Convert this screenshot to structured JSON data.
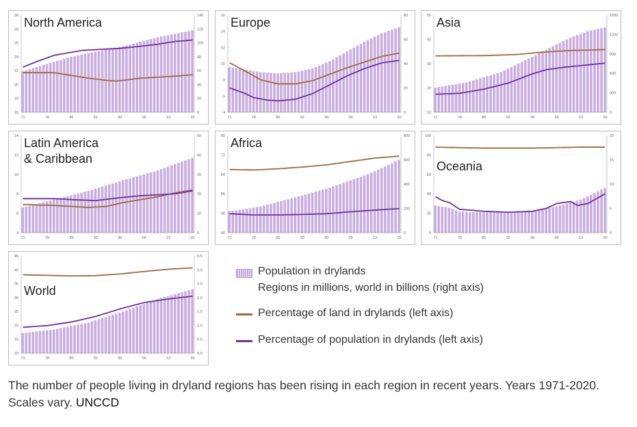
{
  "years": [
    1971,
    1972,
    1973,
    1974,
    1975,
    1976,
    1977,
    1978,
    1979,
    1980,
    1981,
    1982,
    1983,
    1984,
    1985,
    1986,
    1987,
    1988,
    1989,
    1990,
    1991,
    1992,
    1993,
    1994,
    1995,
    1996,
    1997,
    1998,
    1999,
    2000,
    2001,
    2002,
    2003,
    2004,
    2005,
    2006,
    2007,
    2008,
    2009,
    2010,
    2011,
    2012,
    2013,
    2014,
    2015,
    2016,
    2017,
    2018,
    2019,
    2020
  ],
  "x_tick_labels": [
    "71",
    "78",
    "85",
    "92",
    "99",
    "06",
    "13",
    "20"
  ],
  "colors": {
    "bar": "#c9addf",
    "bar_edge": "#ede2f6",
    "land": "#9c6a3a",
    "pop": "#6a2fa3",
    "border": "#b9b9b9",
    "tick": "#666666"
  },
  "chart_data": [
    {
      "type": "bar+line",
      "title": "North America",
      "left_ylim": [
        16,
        30
      ],
      "left_ticks": [
        "16",
        "18",
        "20",
        "22",
        "24",
        "26",
        "28",
        "30"
      ],
      "right_ylim": [
        0,
        140
      ],
      "right_ticks": [
        "0",
        "20",
        "40",
        "60",
        "80",
        "100",
        "120",
        "140"
      ],
      "population_keyframes": [
        [
          1971,
          59
        ],
        [
          1985,
          80
        ],
        [
          2000,
          95
        ],
        [
          2010,
          108
        ],
        [
          2020,
          118
        ]
      ],
      "land_pct_keyframes": [
        [
          1971,
          21.7
        ],
        [
          1980,
          21.7
        ],
        [
          1985,
          21.3
        ],
        [
          1990,
          20.9
        ],
        [
          1995,
          20.6
        ],
        [
          1998,
          20.5
        ],
        [
          2000,
          20.6
        ],
        [
          2005,
          20.9
        ],
        [
          2015,
          21.2
        ],
        [
          2020,
          21.4
        ]
      ],
      "pop_pct_keyframes": [
        [
          1971,
          22.5
        ],
        [
          1975,
          23.3
        ],
        [
          1980,
          24.2
        ],
        [
          1988,
          24.9
        ],
        [
          1995,
          25.1
        ],
        [
          1999,
          25.2
        ],
        [
          2005,
          25.5
        ],
        [
          2010,
          25.8
        ],
        [
          2015,
          26.2
        ],
        [
          2020,
          26.4
        ]
      ]
    },
    {
      "type": "bar+line",
      "title": "Europe",
      "left_ylim": [
        4,
        16
      ],
      "left_ticks": [
        "4",
        "6",
        "8",
        "10",
        "12",
        "14",
        "16"
      ],
      "right_ylim": [
        0,
        80
      ],
      "right_ticks": [
        "0",
        "20",
        "40",
        "60",
        "80"
      ],
      "population_keyframes": [
        [
          1971,
          37
        ],
        [
          1975,
          35.5
        ],
        [
          1980,
          33
        ],
        [
          1985,
          32
        ],
        [
          1990,
          33
        ],
        [
          1995,
          36
        ],
        [
          2000,
          42
        ],
        [
          2005,
          50
        ],
        [
          2010,
          58
        ],
        [
          2015,
          65
        ],
        [
          2020,
          70
        ]
      ],
      "land_pct_keyframes": [
        [
          1971,
          10.1
        ],
        [
          1975,
          9.2
        ],
        [
          1980,
          8.0
        ],
        [
          1985,
          7.5
        ],
        [
          1990,
          7.5
        ],
        [
          1995,
          7.9
        ],
        [
          2000,
          8.7
        ],
        [
          2005,
          9.5
        ],
        [
          2010,
          10.2
        ],
        [
          2015,
          10.9
        ],
        [
          2020,
          11.3
        ]
      ],
      "pop_pct_keyframes": [
        [
          1971,
          7.0
        ],
        [
          1975,
          6.4
        ],
        [
          1978,
          5.8
        ],
        [
          1982,
          5.5
        ],
        [
          1985,
          5.4
        ],
        [
          1990,
          5.6
        ],
        [
          1995,
          6.3
        ],
        [
          2000,
          7.4
        ],
        [
          2005,
          8.5
        ],
        [
          2010,
          9.4
        ],
        [
          2015,
          10.1
        ],
        [
          2020,
          10.4
        ]
      ]
    },
    {
      "type": "bar+line",
      "title": "Asia",
      "left_ylim": [
        10,
        50
      ],
      "left_ticks": [
        "10",
        "20",
        "30",
        "40",
        "50"
      ],
      "right_ylim": [
        0,
        1500
      ],
      "right_ticks": [
        "0",
        "300",
        "600",
        "900",
        "1200",
        "1500"
      ],
      "population_keyframes": [
        [
          1971,
          380
        ],
        [
          1980,
          460
        ],
        [
          1990,
          620
        ],
        [
          2000,
          880
        ],
        [
          2005,
          1020
        ],
        [
          2010,
          1150
        ],
        [
          2015,
          1250
        ],
        [
          2020,
          1310
        ]
      ],
      "land_pct_keyframes": [
        [
          1971,
          33.2
        ],
        [
          1985,
          33.3
        ],
        [
          1995,
          33.8
        ],
        [
          2000,
          34.5
        ],
        [
          2005,
          35.0
        ],
        [
          2010,
          35.4
        ],
        [
          2020,
          35.8
        ]
      ],
      "pop_pct_keyframes": [
        [
          1971,
          17.4
        ],
        [
          1978,
          17.8
        ],
        [
          1985,
          19.5
        ],
        [
          1992,
          22.0
        ],
        [
          1999,
          25.8
        ],
        [
          2003,
          27.5
        ],
        [
          2008,
          28.5
        ],
        [
          2013,
          29.2
        ],
        [
          2020,
          30.2
        ]
      ]
    },
    {
      "type": "bar+line",
      "title": "Latin America\n& Caribbean",
      "left_ylim": [
        4,
        14
      ],
      "left_ticks": [
        "4",
        "6",
        "8",
        "10",
        "12",
        "14"
      ],
      "right_ylim": [
        0,
        50
      ],
      "right_ticks": [
        "0",
        "10",
        "20",
        "30",
        "40",
        "50"
      ],
      "population_keyframes": [
        [
          1971,
          13
        ],
        [
          1980,
          17
        ],
        [
          1990,
          21.5
        ],
        [
          2000,
          27
        ],
        [
          2010,
          32
        ],
        [
          2020,
          38.5
        ]
      ],
      "land_pct_keyframes": [
        [
          1971,
          6.9
        ],
        [
          1980,
          6.8
        ],
        [
          1990,
          6.6
        ],
        [
          1995,
          6.7
        ],
        [
          2000,
          7.1
        ],
        [
          2005,
          7.4
        ],
        [
          2010,
          7.7
        ],
        [
          2015,
          8.1
        ],
        [
          2020,
          8.4
        ]
      ],
      "pop_pct_keyframes": [
        [
          1971,
          7.5
        ],
        [
          1980,
          7.5
        ],
        [
          1985,
          7.4
        ],
        [
          1992,
          7.3
        ],
        [
          1999,
          7.6
        ],
        [
          2005,
          7.8
        ],
        [
          2010,
          7.9
        ],
        [
          2015,
          8.0
        ],
        [
          2020,
          8.3
        ]
      ]
    },
    {
      "type": "bar+line",
      "title": "Africa",
      "left_ylim": [
        40,
        80
      ],
      "left_ticks": [
        "40",
        "48",
        "56",
        "64",
        "72",
        "80"
      ],
      "right_ylim": [
        0,
        800
      ],
      "right_ticks": [
        "0",
        "200",
        "400",
        "600",
        "800"
      ],
      "population_keyframes": [
        [
          1971,
          175
        ],
        [
          1980,
          215
        ],
        [
          1990,
          290
        ],
        [
          2000,
          370
        ],
        [
          2005,
          420
        ],
        [
          2010,
          470
        ],
        [
          2015,
          530
        ],
        [
          2020,
          600
        ]
      ],
      "land_pct_keyframes": [
        [
          1971,
          66.0
        ],
        [
          1978,
          65.8
        ],
        [
          1985,
          66.3
        ],
        [
          1992,
          67.0
        ],
        [
          1999,
          67.9
        ],
        [
          2006,
          69.3
        ],
        [
          2013,
          70.7
        ],
        [
          2020,
          71.5
        ]
      ],
      "pop_pct_keyframes": [
        [
          1971,
          47.8
        ],
        [
          1978,
          47.3
        ],
        [
          1985,
          47.3
        ],
        [
          1992,
          47.5
        ],
        [
          1999,
          47.8
        ],
        [
          2006,
          48.6
        ],
        [
          2013,
          49.3
        ],
        [
          2020,
          49.9
        ]
      ]
    },
    {
      "type": "bar+line",
      "title": "Oceania",
      "left_ylim": [
        0,
        100
      ],
      "left_ticks": [
        "0",
        "20",
        "40",
        "60",
        "80",
        "100"
      ],
      "right_ylim": [
        0,
        20
      ],
      "right_ticks": [
        "0",
        "5",
        "10",
        "15",
        "20"
      ],
      "population_keyframes": [
        [
          1971,
          5.6
        ],
        [
          1975,
          5.1
        ],
        [
          1978,
          4.3
        ],
        [
          1985,
          4.2
        ],
        [
          1992,
          4.2
        ],
        [
          1999,
          4.4
        ],
        [
          2006,
          5.4
        ],
        [
          2010,
          6.2
        ],
        [
          2013,
          6.8
        ],
        [
          2016,
          7.8
        ],
        [
          2020,
          9.2
        ]
      ],
      "land_pct_keyframes": [
        [
          1971,
          88
        ],
        [
          1985,
          87
        ],
        [
          1999,
          87
        ],
        [
          2013,
          88
        ],
        [
          2020,
          88
        ]
      ],
      "pop_pct_keyframes": [
        [
          1971,
          37
        ],
        [
          1973,
          33
        ],
        [
          1975,
          31
        ],
        [
          1978,
          24
        ],
        [
          1985,
          22
        ],
        [
          1992,
          21
        ],
        [
          1999,
          22
        ],
        [
          2003,
          25
        ],
        [
          2006,
          30
        ],
        [
          2010,
          32
        ],
        [
          2012,
          28
        ],
        [
          2015,
          30
        ],
        [
          2020,
          40
        ]
      ]
    },
    {
      "type": "bar+line",
      "title": "World",
      "left_ylim": [
        10,
        45
      ],
      "left_ticks": [
        "10",
        "15",
        "20",
        "25",
        "30",
        "35",
        "40",
        "45"
      ],
      "right_ylim": [
        0,
        3.5
      ],
      "right_ticks": [
        "0.0",
        "0.5",
        "1.0",
        "1.5",
        "2.0",
        "2.5",
        "3.0",
        "3.5"
      ],
      "population_keyframes": [
        [
          1971,
          0.72
        ],
        [
          1980,
          0.85
        ],
        [
          1990,
          1.1
        ],
        [
          2000,
          1.5
        ],
        [
          2010,
          1.95
        ],
        [
          2020,
          2.3
        ]
      ],
      "land_pct_keyframes": [
        [
          1971,
          38.2
        ],
        [
          1985,
          37.8
        ],
        [
          1992,
          37.9
        ],
        [
          1999,
          38.5
        ],
        [
          2006,
          39.4
        ],
        [
          2013,
          40.2
        ],
        [
          2020,
          40.7
        ]
      ],
      "pop_pct_keyframes": [
        [
          1971,
          19.3
        ],
        [
          1978,
          19.9
        ],
        [
          1985,
          21.2
        ],
        [
          1992,
          23.2
        ],
        [
          1999,
          25.9
        ],
        [
          2006,
          28.2
        ],
        [
          2013,
          29.5
        ],
        [
          2020,
          30.5
        ]
      ]
    }
  ],
  "legend": {
    "population": "Population in drylands",
    "population_sub": "Regions in millions, world in billions (right axis)",
    "land": "Percentage of land in drylands (left axis)",
    "pop_pct": "Percentage of population in drylands (left axis)"
  },
  "caption": {
    "text": "The number of people living in dryland regions has been rising in each region in recent years. Years 1971-2020. Scales vary.",
    "source": "UNCCD"
  }
}
